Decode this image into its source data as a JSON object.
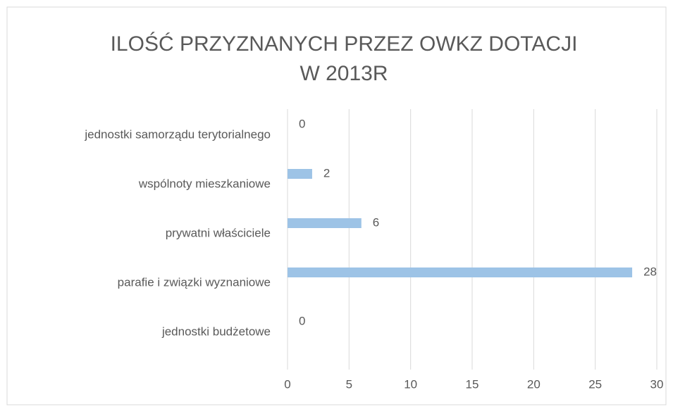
{
  "chart_data": {
    "type": "hbar",
    "title": [
      "ILOŚĆ PRZYZNANYCH PRZEZ OWKZ DOTACJI",
      "W 2013R"
    ],
    "categories": [
      "jednostki samorządu terytorialnego",
      "wspólnoty mieszkaniowe",
      "prywatni właściciele",
      "parafie i związki wyznaniowe",
      "jednostki budżetowe"
    ],
    "values": [
      0,
      2,
      6,
      28,
      0
    ],
    "color": "#9dc3e6",
    "xlim": [
      0,
      30
    ],
    "xticks": [
      0,
      5,
      10,
      15,
      20,
      25,
      30
    ],
    "grid": true
  }
}
